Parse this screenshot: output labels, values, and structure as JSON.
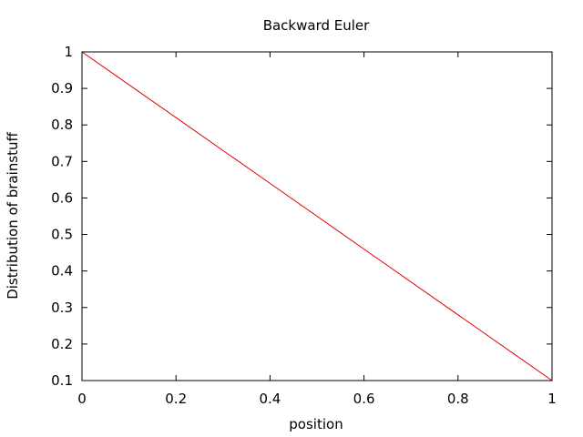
{
  "chart_data": {
    "type": "line",
    "title": "Backward Euler",
    "xlabel": "position",
    "ylabel": "Distribution of brainstuff",
    "xlim": [
      0,
      1
    ],
    "ylim": [
      0.1,
      1
    ],
    "xticks": [
      "0",
      "0.2",
      "0.4",
      "0.6",
      "0.8",
      "1"
    ],
    "yticks": [
      "0.1",
      "0.2",
      "0.3",
      "0.4",
      "0.5",
      "0.6",
      "0.7",
      "0.8",
      "0.9",
      "1"
    ],
    "grid": false,
    "series": [
      {
        "color": "#e00000",
        "x": [
          0,
          0.2,
          0.4,
          0.6,
          0.8,
          1
        ],
        "y": [
          1,
          0.82,
          0.64,
          0.46,
          0.28,
          0.1
        ]
      }
    ]
  }
}
